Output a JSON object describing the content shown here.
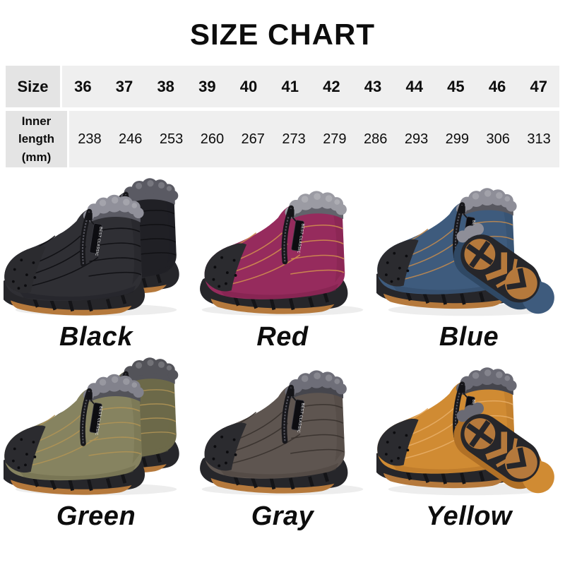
{
  "title": "SIZE CHART",
  "size_table": {
    "row1_header": "Size",
    "row2_header": "Inner length (mm)",
    "sizes": [
      "36",
      "37",
      "38",
      "39",
      "40",
      "41",
      "42",
      "43",
      "44",
      "45",
      "46",
      "47"
    ],
    "inner_lengths_mm": [
      "238",
      "246",
      "253",
      "260",
      "267",
      "273",
      "279",
      "286",
      "293",
      "299",
      "306",
      "313"
    ]
  },
  "zipper_tag_text": "BEST CLASSIC",
  "shared_colors": {
    "page_bg": "#ffffff",
    "text": "#0d0d0d",
    "table_header_bg": "#e4e4e4",
    "table_cell_bg": "#efefef",
    "sole": "#26262a",
    "toe_cap": "#2b2b2f",
    "gum": "#b5793c",
    "zipper": "#17171b",
    "shadow": "#1a1a1a"
  },
  "products": [
    {
      "name": "Black",
      "composition": "pair",
      "colors": {
        "fabric": "#2f2f34",
        "shade": "#202025",
        "stitch": "#0e0e12",
        "fur": "#90909a",
        "fur_dark": "#5a5a63"
      }
    },
    {
      "name": "Red",
      "composition": "single",
      "colors": {
        "fabric": "#962b5d",
        "shade": "#7a2049",
        "stitch": "#cf8d4f",
        "fur": "#9b9ba3",
        "fur_dark": "#62626b"
      }
    },
    {
      "name": "Blue",
      "composition": "boot-with-sole",
      "colors": {
        "fabric": "#3e5b7d",
        "shade": "#2f4864",
        "stitch": "#c08a50",
        "fur": "#8e8e98",
        "fur_dark": "#585860"
      }
    },
    {
      "name": "Green",
      "composition": "pair",
      "colors": {
        "fabric": "#868360",
        "shade": "#6c6949",
        "stitch": "#b09455",
        "fur": "#82828c",
        "fur_dark": "#535359"
      }
    },
    {
      "name": "Gray",
      "composition": "single",
      "colors": {
        "fabric": "#5e5550",
        "shade": "#4a423c",
        "stitch": "#38322e",
        "fur": "#6e6e78",
        "fur_dark": "#46464d"
      }
    },
    {
      "name": "Yellow",
      "composition": "boot-with-sole",
      "colors": {
        "fabric": "#d08b33",
        "shade": "#b07026",
        "stitch": "#e7ad66",
        "fur": "#6a6a74",
        "fur_dark": "#45454c"
      }
    }
  ]
}
